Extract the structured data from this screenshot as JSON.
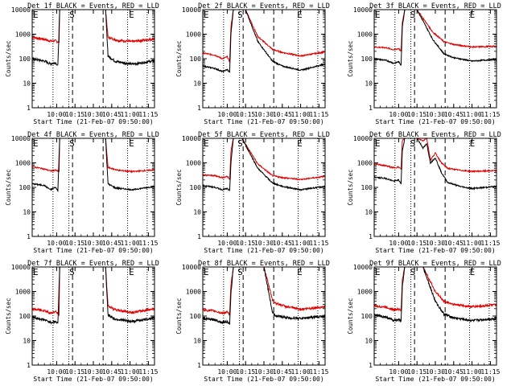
{
  "chart_data": {
    "type": "line",
    "scale": "log",
    "ylim": [
      1,
      10000
    ],
    "ytick_labels": [
      "1",
      "10",
      "100",
      "1000",
      "10000"
    ],
    "xlim_minutes": [
      -10,
      90
    ],
    "x_ticks_minutes": [
      10,
      25,
      40,
      55,
      70,
      85
    ],
    "xtick_labels": [
      "10:00",
      "10:15",
      "10:30",
      "10:45",
      "11:00",
      "11:15"
    ],
    "xlabel": "Start Time (21-Feb-07 09:50:00)",
    "ylabel": "Counts/sec",
    "dotted_lines_minutes": [
      7,
      20,
      68,
      84
    ],
    "dashed_lines_minutes": [
      23,
      48
    ],
    "colors": {
      "events": "#000000",
      "lld": "#e00000"
    },
    "panels": [
      {
        "title": "Det 1f BLACK = Events, RED = LLD",
        "markers": {
          "E": -10,
          "S": 23,
          "E2": 71
        },
        "lld": [
          [
            -10,
            750
          ],
          [
            0,
            620
          ],
          [
            5,
            520
          ],
          [
            9,
            540
          ],
          [
            12,
            470
          ],
          [
            12.5,
            10000
          ],
          [
            50,
            10000
          ],
          [
            52,
            750
          ],
          [
            60,
            560
          ],
          [
            72,
            500
          ],
          [
            90,
            640
          ]
        ],
        "events": [
          [
            -10,
            100
          ],
          [
            0,
            80
          ],
          [
            5,
            62
          ],
          [
            9,
            70
          ],
          [
            11,
            52
          ],
          [
            12.5,
            10000
          ],
          [
            50,
            10000
          ],
          [
            52,
            130
          ],
          [
            58,
            78
          ],
          [
            72,
            60
          ],
          [
            90,
            82
          ]
        ]
      },
      {
        "title": "Det 2f BLACK = Events, RED = LLD",
        "markers": {
          "E": -10,
          "S": 21,
          "E2": 69
        },
        "lld": [
          [
            -10,
            170
          ],
          [
            0,
            140
          ],
          [
            6,
            100
          ],
          [
            10,
            120
          ],
          [
            12,
            75
          ],
          [
            13,
            2000
          ],
          [
            15,
            10000
          ],
          [
            25,
            10000
          ],
          [
            35,
            800
          ],
          [
            47,
            240
          ],
          [
            55,
            180
          ],
          [
            70,
            130
          ],
          [
            90,
            190
          ]
        ],
        "events": [
          [
            -10,
            50
          ],
          [
            0,
            40
          ],
          [
            6,
            30
          ],
          [
            10,
            36
          ],
          [
            12,
            28
          ],
          [
            13,
            1000
          ],
          [
            15,
            10000
          ],
          [
            25,
            10000
          ],
          [
            35,
            500
          ],
          [
            47,
            80
          ],
          [
            55,
            50
          ],
          [
            70,
            34
          ],
          [
            90,
            60
          ]
        ]
      },
      {
        "title": "Det 3f BLACK = Events, RED = LLD",
        "markers": {
          "E": -10,
          "S": 22,
          "E2": 70
        },
        "lld": [
          [
            -10,
            300
          ],
          [
            0,
            280
          ],
          [
            6,
            230
          ],
          [
            10,
            260
          ],
          [
            12,
            200
          ],
          [
            13,
            3000
          ],
          [
            15,
            10000
          ],
          [
            25,
            10000
          ],
          [
            38,
            1200
          ],
          [
            47,
            500
          ],
          [
            55,
            380
          ],
          [
            70,
            300
          ],
          [
            90,
            320
          ]
        ],
        "events": [
          [
            -10,
            100
          ],
          [
            0,
            85
          ],
          [
            6,
            65
          ],
          [
            10,
            75
          ],
          [
            12,
            55
          ],
          [
            13,
            2000
          ],
          [
            15,
            10000
          ],
          [
            25,
            10000
          ],
          [
            38,
            600
          ],
          [
            47,
            160
          ],
          [
            55,
            110
          ],
          [
            70,
            80
          ],
          [
            90,
            95
          ]
        ]
      },
      {
        "title": "Det 4f BLACK = Events, RED = LLD",
        "markers": {
          "E": -10,
          "S": 23,
          "E2": 71
        },
        "lld": [
          [
            -10,
            700
          ],
          [
            0,
            560
          ],
          [
            5,
            470
          ],
          [
            9,
            500
          ],
          [
            12,
            440
          ],
          [
            12.5,
            10000
          ],
          [
            50,
            10000
          ],
          [
            52,
            650
          ],
          [
            60,
            500
          ],
          [
            72,
            440
          ],
          [
            90,
            520
          ]
        ],
        "events": [
          [
            -10,
            140
          ],
          [
            0,
            120
          ],
          [
            5,
            80
          ],
          [
            9,
            100
          ],
          [
            11,
            75
          ],
          [
            12.5,
            10000
          ],
          [
            50,
            10000
          ],
          [
            52,
            140
          ],
          [
            58,
            95
          ],
          [
            72,
            80
          ],
          [
            90,
            110
          ]
        ]
      },
      {
        "title": "Det 5f BLACK = Events, RED = LLD",
        "markers": {
          "E": -10,
          "S": 21,
          "E2": 69
        },
        "lld": [
          [
            -10,
            320
          ],
          [
            0,
            300
          ],
          [
            6,
            250
          ],
          [
            10,
            280
          ],
          [
            12,
            210
          ],
          [
            13,
            3000
          ],
          [
            15,
            10000
          ],
          [
            22,
            10000
          ],
          [
            35,
            900
          ],
          [
            47,
            300
          ],
          [
            55,
            250
          ],
          [
            70,
            210
          ],
          [
            90,
            280
          ]
        ],
        "events": [
          [
            -10,
            120
          ],
          [
            0,
            100
          ],
          [
            6,
            80
          ],
          [
            10,
            90
          ],
          [
            12,
            70
          ],
          [
            13,
            1000
          ],
          [
            15,
            10000
          ],
          [
            22,
            10000
          ],
          [
            35,
            600
          ],
          [
            47,
            150
          ],
          [
            55,
            110
          ],
          [
            70,
            80
          ],
          [
            90,
            110
          ]
        ]
      },
      {
        "title": "Det 6f BLACK = Events, RED = LLD",
        "markers": {
          "E": -10,
          "S": 22,
          "E2": 70
        },
        "lld": [
          [
            -10,
            900
          ],
          [
            0,
            760
          ],
          [
            6,
            620
          ],
          [
            10,
            680
          ],
          [
            12,
            550
          ],
          [
            13,
            8000
          ],
          [
            15,
            10000
          ],
          [
            25,
            10000
          ],
          [
            30,
            8000
          ],
          [
            33,
            10000
          ],
          [
            36,
            1300
          ],
          [
            40,
            2500
          ],
          [
            45,
            1000
          ],
          [
            50,
            600
          ],
          [
            60,
            500
          ],
          [
            70,
            450
          ],
          [
            90,
            480
          ]
        ],
        "events": [
          [
            -10,
            260
          ],
          [
            0,
            230
          ],
          [
            6,
            180
          ],
          [
            10,
            200
          ],
          [
            12,
            140
          ],
          [
            13,
            3000
          ],
          [
            15,
            10000
          ],
          [
            25,
            10000
          ],
          [
            30,
            4000
          ],
          [
            33,
            6000
          ],
          [
            36,
            1000
          ],
          [
            40,
            1600
          ],
          [
            45,
            400
          ],
          [
            50,
            160
          ],
          [
            60,
            110
          ],
          [
            70,
            90
          ],
          [
            90,
            110
          ]
        ]
      },
      {
        "title": "Det 7f BLACK = Events, RED = LLD",
        "markers": {
          "E": -10,
          "S": 23,
          "E2": 71
        },
        "lld": [
          [
            -10,
            190
          ],
          [
            0,
            170
          ],
          [
            5,
            130
          ],
          [
            9,
            150
          ],
          [
            12,
            120
          ],
          [
            12.5,
            10000
          ],
          [
            50,
            10000
          ],
          [
            52,
            260
          ],
          [
            58,
            180
          ],
          [
            72,
            140
          ],
          [
            90,
            200
          ]
        ],
        "events": [
          [
            -10,
            90
          ],
          [
            0,
            70
          ],
          [
            5,
            55
          ],
          [
            9,
            60
          ],
          [
            11,
            50
          ],
          [
            12.5,
            10000
          ],
          [
            50,
            10000
          ],
          [
            52,
            110
          ],
          [
            58,
            75
          ],
          [
            72,
            60
          ],
          [
            90,
            85
          ]
        ]
      },
      {
        "title": "Det 8f BLACK = Events, RED = LLD",
        "markers": {
          "E": -10,
          "S": 21,
          "E2": 69
        },
        "lld": [
          [
            -10,
            180
          ],
          [
            0,
            160
          ],
          [
            6,
            130
          ],
          [
            10,
            145
          ],
          [
            12,
            110
          ],
          [
            13,
            2000
          ],
          [
            15,
            10000
          ],
          [
            40,
            10000
          ],
          [
            47,
            450
          ],
          [
            50,
            330
          ],
          [
            60,
            230
          ],
          [
            70,
            190
          ],
          [
            90,
            240
          ]
        ],
        "events": [
          [
            -10,
            80
          ],
          [
            0,
            70
          ],
          [
            6,
            55
          ],
          [
            10,
            60
          ],
          [
            12,
            45
          ],
          [
            13,
            800
          ],
          [
            15,
            10000
          ],
          [
            40,
            10000
          ],
          [
            47,
            140
          ],
          [
            50,
            100
          ],
          [
            60,
            85
          ],
          [
            70,
            80
          ],
          [
            90,
            100
          ]
        ]
      },
      {
        "title": "Det 9f BLACK = Events, RED = LLD",
        "markers": {
          "E": -10,
          "S": 22,
          "E2": 70
        },
        "lld": [
          [
            -10,
            260
          ],
          [
            0,
            230
          ],
          [
            6,
            180
          ],
          [
            10,
            200
          ],
          [
            12,
            160
          ],
          [
            13,
            3000
          ],
          [
            15,
            10000
          ],
          [
            30,
            10000
          ],
          [
            40,
            1000
          ],
          [
            47,
            400
          ],
          [
            55,
            300
          ],
          [
            70,
            240
          ],
          [
            90,
            290
          ]
        ],
        "events": [
          [
            -10,
            110
          ],
          [
            0,
            90
          ],
          [
            6,
            65
          ],
          [
            10,
            75
          ],
          [
            12,
            60
          ],
          [
            13,
            1500
          ],
          [
            15,
            10000
          ],
          [
            30,
            10000
          ],
          [
            40,
            400
          ],
          [
            47,
            120
          ],
          [
            55,
            85
          ],
          [
            70,
            65
          ],
          [
            90,
            80
          ]
        ]
      }
    ]
  }
}
